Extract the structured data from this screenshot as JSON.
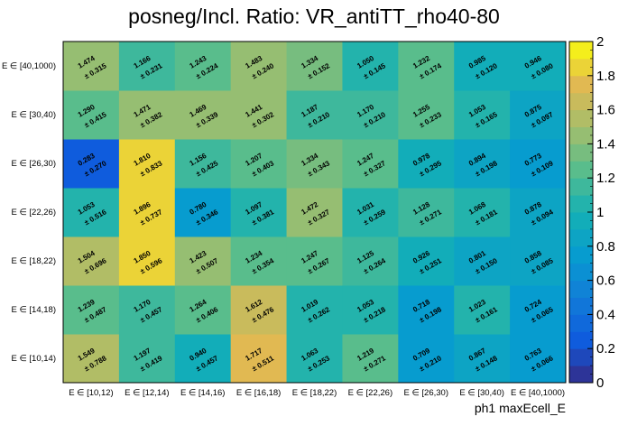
{
  "chart_data": {
    "type": "heatmap",
    "title": "posneg/Incl. Ratio: VR_antiTT_rho40-80",
    "xlabel": "ph1 maxEcell_E",
    "ylabel": "",
    "x_categories": [
      "E ∈ [10,12)",
      "E ∈ [12,14)",
      "E ∈ [14,16)",
      "E ∈ [16,18)",
      "E ∈ [18,22)",
      "E ∈ [22,26)",
      "E ∈ [26,30)",
      "E ∈ [30,40)",
      "E ∈ [40,1000)"
    ],
    "y_categories": [
      "E ∈ [10,14)",
      "E ∈ [14,18)",
      "E ∈ [18,22)",
      "E ∈ [22,26)",
      "E ∈ [26,30)",
      "E ∈ [30,40)",
      "E ∈ [40,1000)"
    ],
    "zlim": [
      0,
      2
    ],
    "z_ticks": [
      "0",
      "0.2",
      "0.4",
      "0.6",
      "0.8",
      "1",
      "1.2",
      "1.4",
      "1.6",
      "1.8",
      "2"
    ],
    "colormap": "kBird",
    "values": [
      [
        1.549,
        1.197,
        0.94,
        1.717,
        1.063,
        1.219,
        0.709,
        0.867,
        0.763
      ],
      [
        1.239,
        1.17,
        1.264,
        1.612,
        1.019,
        1.053,
        0.718,
        1.023,
        0.724
      ],
      [
        1.504,
        1.85,
        1.423,
        1.234,
        1.247,
        1.125,
        0.926,
        0.801,
        0.858
      ],
      [
        1.053,
        1.896,
        0.78,
        1.097,
        1.472,
        1.031,
        1.128,
        1.068,
        0.878
      ],
      [
        0.283,
        1.81,
        1.156,
        1.207,
        1.334,
        1.247,
        0.978,
        0.894,
        0.773
      ],
      [
        1.29,
        1.471,
        1.469,
        1.441,
        1.187,
        1.17,
        1.255,
        1.053,
        0.875
      ],
      [
        1.474,
        1.166,
        1.243,
        1.483,
        1.334,
        1.05,
        1.232,
        0.985,
        0.946
      ]
    ],
    "errors": [
      [
        0.788,
        0.419,
        0.457,
        0.511,
        0.253,
        0.271,
        0.21,
        0.148,
        0.066
      ],
      [
        0.487,
        0.457,
        0.406,
        0.476,
        0.262,
        0.218,
        0.198,
        0.161,
        0.065
      ],
      [
        0.696,
        0.596,
        0.507,
        0.354,
        0.267,
        0.264,
        0.251,
        0.15,
        0.085
      ],
      [
        0.516,
        0.737,
        0.346,
        0.381,
        0.327,
        0.259,
        0.271,
        0.181,
        0.094
      ],
      [
        0.27,
        0.833,
        0.425,
        0.403,
        0.343,
        0.327,
        0.295,
        0.198,
        0.109
      ],
      [
        0.415,
        0.382,
        0.339,
        0.302,
        0.21,
        0.21,
        0.233,
        0.165,
        0.097
      ],
      [
        0.315,
        0.231,
        0.224,
        0.24,
        0.152,
        0.145,
        0.174,
        0.12,
        0.08
      ]
    ]
  }
}
